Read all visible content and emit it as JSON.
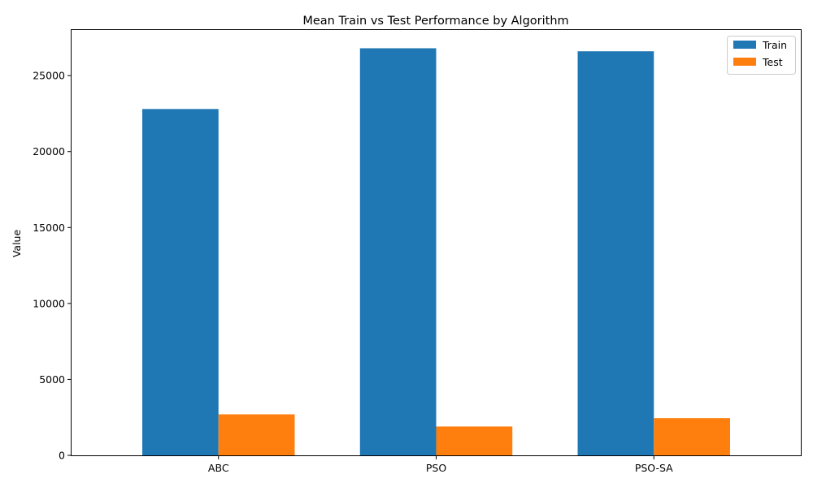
{
  "chart_data": {
    "type": "bar",
    "title": "Mean Train vs Test Performance by Algorithm",
    "xlabel": "",
    "ylabel": "Value",
    "categories": [
      "ABC",
      "PSO",
      "PSO-SA"
    ],
    "series": [
      {
        "name": "Train",
        "color": "#1f77b4",
        "values": [
          22800,
          26800,
          26600
        ]
      },
      {
        "name": "Test",
        "color": "#ff7f0e",
        "values": [
          2700,
          1900,
          2450
        ]
      }
    ],
    "ylim": [
      0,
      28000
    ],
    "yticks": [
      0,
      5000,
      10000,
      15000,
      20000,
      25000
    ],
    "grid": false,
    "legend_position": "top-right"
  }
}
